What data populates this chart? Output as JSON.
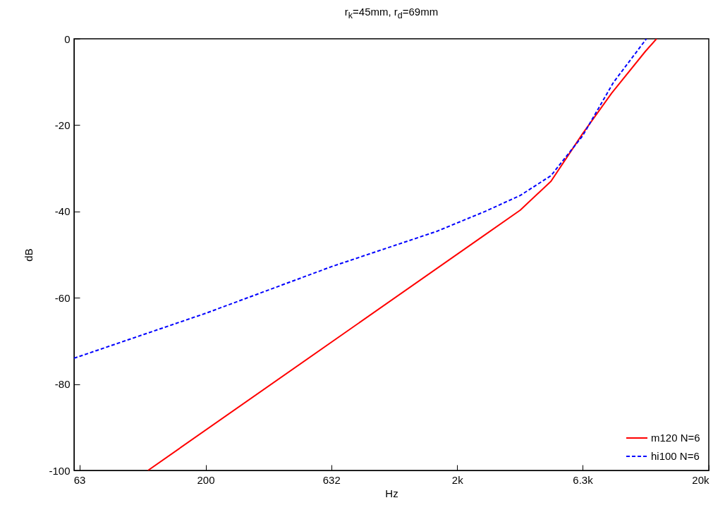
{
  "chart_data": {
    "type": "line",
    "title": "r$_{k}$=45mm, r$_{d}$=69mm",
    "xlabel": "Hz",
    "ylabel": "dB",
    "xlim": [
      60,
      20000
    ],
    "ylim": [
      -100,
      0
    ],
    "xticks": [
      63,
      200,
      632,
      {
        "value": 2000,
        "label": "2k"
      },
      {
        "value": 6300,
        "label": "6.3k"
      },
      {
        "value": 20000,
        "label": "20k"
      }
    ],
    "yticks": [
      -100,
      -80,
      -60,
      -40,
      -20,
      0
    ],
    "grid": false,
    "legend": "bottom right",
    "log": "x",
    "series": [
      {
        "name": "m120 N=6",
        "color": "#ff0000",
        "line_style": "solid",
        "x": [
          118,
          2580,
          3560,
          4720,
          6300,
          8220,
          11200,
          12400
        ],
        "values": [
          -100,
          -45.4,
          -39.7,
          -33,
          -22,
          -12.6,
          -2.9,
          0
        ]
      },
      {
        "name": "hi100 N=6",
        "color": "#0000ff",
        "line_style": "dashed",
        "x": [
          60,
          200,
          632,
          1660,
          2580,
          3560,
          4720,
          6300,
          8360,
          11300
        ],
        "values": [
          -74,
          -63.6,
          -52.8,
          -44.6,
          -40,
          -36.3,
          -31.7,
          -22.5,
          -10.1,
          0
        ]
      }
    ]
  }
}
